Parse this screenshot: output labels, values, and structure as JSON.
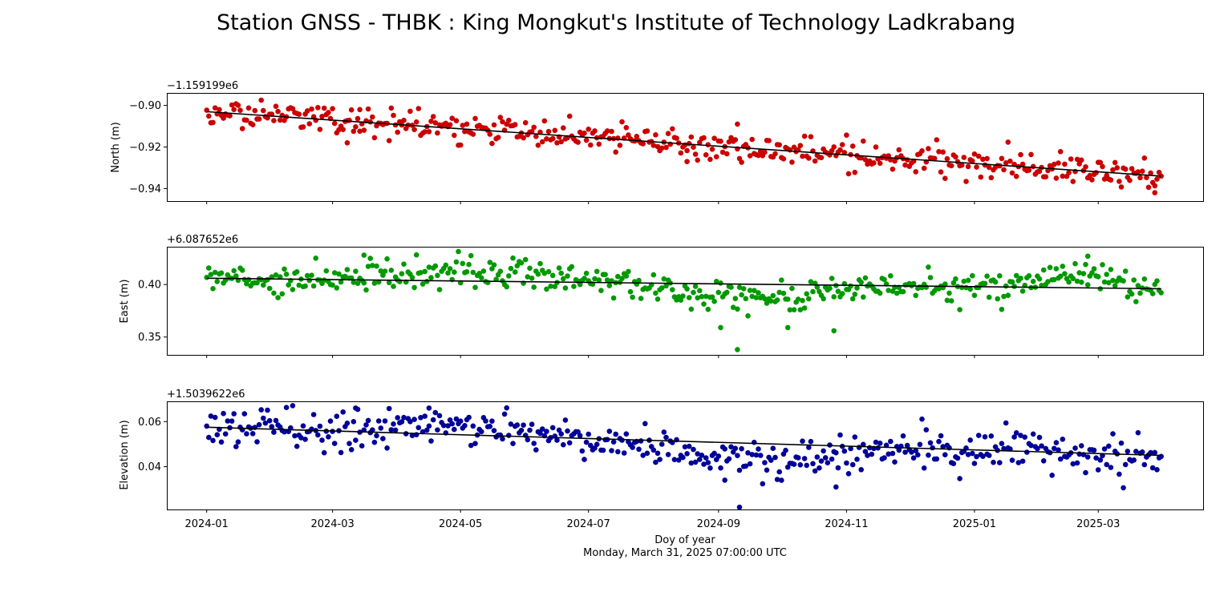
{
  "figure": {
    "title": "Station GNSS - THBK : King Mongkut's Institute of Technology Ladkrabang",
    "xlabel": "Doy of year",
    "subtitle": "Monday, March 31, 2025 07:00:00 UTC"
  },
  "chart_data": [
    {
      "type": "scatter",
      "ylabel": "North (m)",
      "offset_label": "−1.159199e6",
      "color": "#cc0000",
      "trend_color": "#000000",
      "x_range": [
        "2024-01-01",
        "2025-03-31"
      ],
      "xlim": [
        "2023-12-13",
        "2025-04-20"
      ],
      "ylim": [
        -0.946,
        -0.894
      ],
      "yticks": [
        -0.9,
        -0.92,
        -0.94
      ],
      "ytick_labels": [
        "−0.90",
        "−0.92",
        "−0.94"
      ],
      "trend": {
        "start": -0.903,
        "end": -0.934
      },
      "noise_sd": 0.0035,
      "bumps": [],
      "outliers": [
        {
          "date": "2024-03-14",
          "value": -0.902
        },
        {
          "date": "2024-03-08",
          "value": -0.918
        },
        {
          "date": "2024-08-17",
          "value": -0.927
        },
        {
          "date": "2024-09-10",
          "value": -0.909
        },
        {
          "date": "2025-03-28",
          "value": -0.942
        }
      ],
      "grid": false,
      "legend": "none"
    },
    {
      "type": "scatter",
      "ylabel": "East (m)",
      "offset_label": "+6.087652e6",
      "color": "#009900",
      "trend_color": "#000000",
      "x_range": [
        "2024-01-01",
        "2025-03-31"
      ],
      "xlim": [
        "2023-12-13",
        "2025-04-20"
      ],
      "ylim": [
        0.333,
        0.436
      ],
      "yticks": [
        0.4,
        0.35
      ],
      "ytick_labels": [
        "0.40",
        "0.35"
      ],
      "trend": {
        "start": 0.406,
        "end": 0.396
      },
      "noise_sd": 0.007,
      "bumps": [
        {
          "center": "2024-05-10",
          "width": 45,
          "amp": 0.01
        },
        {
          "center": "2024-09-20",
          "width": 40,
          "amp": -0.015
        },
        {
          "center": "2025-02-15",
          "width": 25,
          "amp": 0.01
        }
      ],
      "outliers": [
        {
          "date": "2024-09-10",
          "value": 0.338
        },
        {
          "date": "2024-09-02",
          "value": 0.359
        },
        {
          "date": "2024-10-04",
          "value": 0.359
        },
        {
          "date": "2024-10-26",
          "value": 0.356
        },
        {
          "date": "2025-02-24",
          "value": 0.427
        },
        {
          "date": "2024-03-16",
          "value": 0.428
        }
      ],
      "grid": false,
      "legend": "none"
    },
    {
      "type": "scatter",
      "ylabel": "Elevation (m)",
      "offset_label": "+1.5039622e6",
      "color": "#000099",
      "trend_color": "#000000",
      "x_range": [
        "2024-01-01",
        "2025-03-31"
      ],
      "xlim": [
        "2023-12-13",
        "2025-04-20"
      ],
      "ylim": [
        0.021,
        0.069
      ],
      "yticks": [
        0.06,
        0.04
      ],
      "ytick_labels": [
        "0.06",
        "0.04"
      ],
      "trend": {
        "start": 0.0575,
        "end": 0.045
      },
      "noise_sd": 0.0042,
      "bumps": [
        {
          "center": "2024-09-20",
          "width": 45,
          "amp": -0.007
        },
        {
          "center": "2024-05-01",
          "width": 40,
          "amp": 0.004
        }
      ],
      "outliers": [
        {
          "date": "2024-09-11",
          "value": 0.022
        },
        {
          "date": "2024-09-04",
          "value": 0.034
        },
        {
          "date": "2024-10-27",
          "value": 0.031
        },
        {
          "date": "2024-04-16",
          "value": 0.066
        },
        {
          "date": "2024-03-12",
          "value": 0.066
        }
      ],
      "grid": false,
      "legend": "none"
    }
  ],
  "x_axis": {
    "ticks": [
      "2024-01-01",
      "2024-03-01",
      "2024-05-01",
      "2024-07-01",
      "2024-09-01",
      "2024-11-01",
      "2025-01-01",
      "2025-03-01"
    ],
    "tick_labels": [
      "2024-01",
      "2024-03",
      "2024-05",
      "2024-07",
      "2024-09",
      "2024-11",
      "2025-01",
      "2025-03"
    ]
  }
}
